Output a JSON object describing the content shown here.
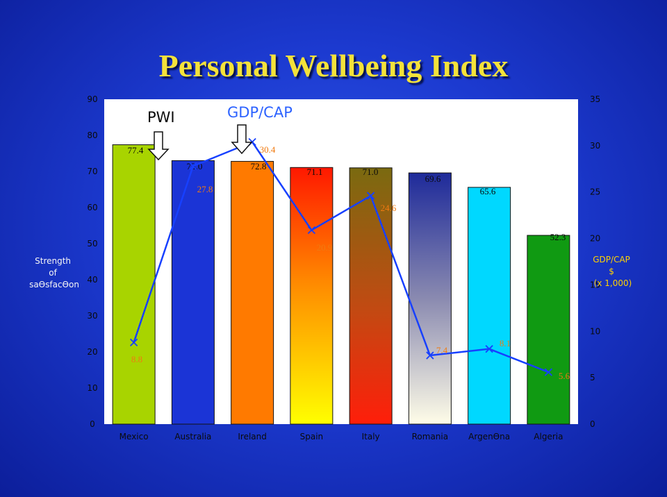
{
  "title": "Personal Wellbeing Index",
  "chart_data": {
    "type": "bar",
    "title": "Personal Wellbeing Index",
    "categories": [
      "Mexico",
      "Australia",
      "Ireland",
      "Spain",
      "Italy",
      "Romania",
      "Argentina",
      "Algeria"
    ],
    "category_labels": [
      "Mexico",
      "Australia",
      "Ireland",
      "Spain",
      "Italy",
      "Romania",
      "ArgenƟna",
      "Algeria"
    ],
    "series": [
      {
        "name": "PWI",
        "type": "bar",
        "axis": "left",
        "values": [
          77.4,
          73.0,
          72.8,
          71.1,
          71.0,
          69.6,
          65.6,
          52.3
        ],
        "labels": [
          "77.4",
          "73.0",
          "72.8",
          "71.1",
          "71.0",
          "69.6",
          "65.6",
          "52.3"
        ],
        "colors": [
          "#a8d400",
          "#1b34d6",
          "#ff7a00",
          "#ff2d00",
          "#8a6a0e",
          "#3a3aa8",
          "#00d8ff",
          "#109a12"
        ]
      },
      {
        "name": "GDP/CAP",
        "type": "line",
        "axis": "right",
        "values": [
          8.8,
          27.8,
          30.4,
          20.9,
          24.6,
          7.4,
          8.1,
          5.6
        ],
        "labels": [
          "8.8",
          "27.8",
          "30.4",
          "20.9",
          "24.6",
          "7.4",
          "8.1",
          "5.6"
        ],
        "color": "#1740ff"
      }
    ],
    "ylabel": [
      "Strength",
      "of",
      "saƟsfacƟon"
    ],
    "ylim": [
      0,
      90
    ],
    "yticks": [
      "0",
      "10",
      "20",
      "30",
      "40",
      "50",
      "60",
      "70",
      "80",
      "90"
    ],
    "y2label": [
      "GDP/CAP",
      "$",
      "(x 1,000)"
    ],
    "y2lim": [
      0,
      35
    ],
    "y2ticks": [
      "0",
      "5",
      "10",
      "15",
      "20",
      "25",
      "30",
      "35"
    ],
    "legend": [
      "PWI",
      "GDP/CAP"
    ],
    "legend_position": "top",
    "grid": false
  }
}
